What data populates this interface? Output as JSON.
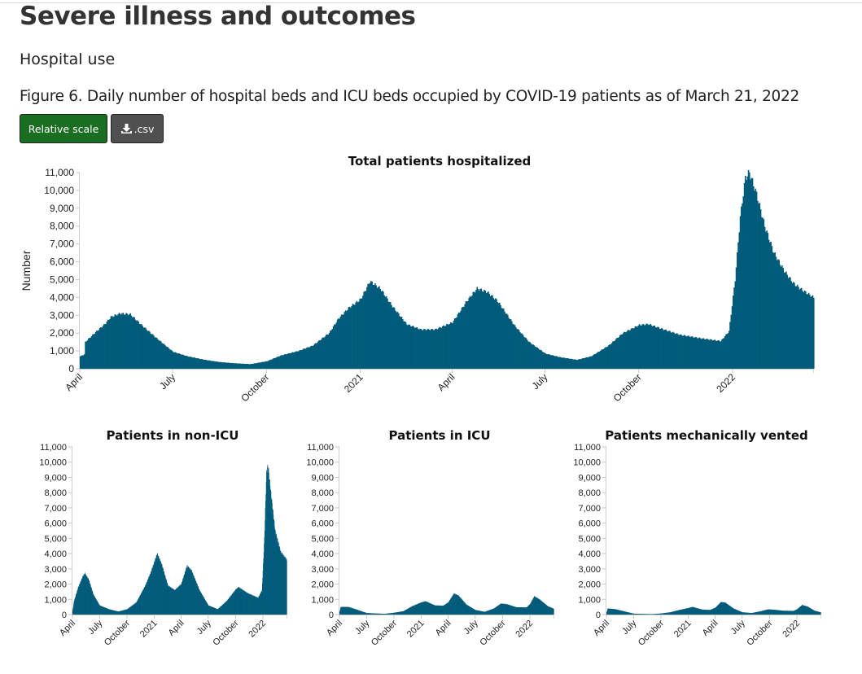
{
  "page": {
    "heading": "Severe illness and outcomes",
    "subheading": "Hospital use",
    "figure_caption": "Figure 6. Daily number of hospital beds and ICU beds occupied by COVID-19 patients as of March 21, 2022"
  },
  "toolbar": {
    "relative_scale_label": "Relative scale",
    "csv_label": ".csv",
    "csv_icon": "download-icon"
  },
  "colors": {
    "bar": "#005a7a",
    "relative_button": "#1a6e22",
    "csv_button": "#505050"
  },
  "chart_data": [
    {
      "id": "total",
      "type": "bar",
      "title": "Total patients hospitalized",
      "xlabel": "",
      "ylabel": "Number",
      "ylim": [
        0,
        11000
      ],
      "yticks": [
        "0",
        "1,000",
        "2,000",
        "3,000",
        "4,000",
        "5,000",
        "6,000",
        "7,000",
        "8,000",
        "9,000",
        "10,000",
        "11,000"
      ],
      "xlim": [
        "2020-04-01",
        "2022-03-21"
      ],
      "xticks": [
        {
          "date": "2020-04-01",
          "label": "April"
        },
        {
          "date": "2020-07-01",
          "label": "July"
        },
        {
          "date": "2020-10-01",
          "label": "October"
        },
        {
          "date": "2021-01-01",
          "label": "2021"
        },
        {
          "date": "2021-04-01",
          "label": "April"
        },
        {
          "date": "2021-07-01",
          "label": "July"
        },
        {
          "date": "2021-10-01",
          "label": "October"
        },
        {
          "date": "2022-01-01",
          "label": "2022"
        }
      ],
      "grid": false,
      "points": [
        [
          "2020-04-01",
          700
        ],
        [
          "2020-04-05",
          800
        ],
        [
          "2020-04-06",
          1500
        ],
        [
          "2020-04-15",
          2000
        ],
        [
          "2020-04-25",
          2500
        ],
        [
          "2020-05-01",
          2900
        ],
        [
          "2020-05-10",
          3100
        ],
        [
          "2020-05-20",
          3050
        ],
        [
          "2020-06-01",
          2400
        ],
        [
          "2020-06-15",
          1700
        ],
        [
          "2020-07-01",
          950
        ],
        [
          "2020-07-15",
          700
        ],
        [
          "2020-08-01",
          500
        ],
        [
          "2020-08-15",
          380
        ],
        [
          "2020-09-01",
          300
        ],
        [
          "2020-09-15",
          260
        ],
        [
          "2020-10-01",
          420
        ],
        [
          "2020-10-15",
          750
        ],
        [
          "2020-11-01",
          1000
        ],
        [
          "2020-11-15",
          1300
        ],
        [
          "2020-12-01",
          2000
        ],
        [
          "2020-12-10",
          2800
        ],
        [
          "2020-12-20",
          3400
        ],
        [
          "2021-01-01",
          3900
        ],
        [
          "2021-01-10",
          4900
        ],
        [
          "2021-01-20",
          4500
        ],
        [
          "2021-02-01",
          3500
        ],
        [
          "2021-02-15",
          2500
        ],
        [
          "2021-03-01",
          2200
        ],
        [
          "2021-03-15",
          2200
        ],
        [
          "2021-04-01",
          2600
        ],
        [
          "2021-04-15",
          3800
        ],
        [
          "2021-04-25",
          4500
        ],
        [
          "2021-05-05",
          4300
        ],
        [
          "2021-05-15",
          3800
        ],
        [
          "2021-06-01",
          2400
        ],
        [
          "2021-06-15",
          1500
        ],
        [
          "2021-07-01",
          850
        ],
        [
          "2021-07-15",
          650
        ],
        [
          "2021-08-01",
          500
        ],
        [
          "2021-08-15",
          700
        ],
        [
          "2021-09-01",
          1300
        ],
        [
          "2021-09-15",
          2000
        ],
        [
          "2021-10-01",
          2450
        ],
        [
          "2021-10-10",
          2500
        ],
        [
          "2021-10-25",
          2200
        ],
        [
          "2021-11-10",
          1900
        ],
        [
          "2021-12-01",
          1700
        ],
        [
          "2021-12-20",
          1550
        ],
        [
          "2021-12-28",
          2100
        ],
        [
          "2022-01-03",
          5000
        ],
        [
          "2022-01-08",
          8500
        ],
        [
          "2022-01-13",
          10700
        ],
        [
          "2022-01-17",
          11000
        ],
        [
          "2022-01-24",
          9800
        ],
        [
          "2022-02-01",
          8000
        ],
        [
          "2022-02-10",
          6500
        ],
        [
          "2022-02-20",
          5500
        ],
        [
          "2022-03-01",
          4800
        ],
        [
          "2022-03-10",
          4400
        ],
        [
          "2022-03-21",
          4000
        ]
      ]
    },
    {
      "id": "non-icu",
      "type": "bar",
      "title": "Patients in non-ICU",
      "ylim": [
        0,
        11000
      ],
      "yticks": [
        "0",
        "1,000",
        "2,000",
        "3,000",
        "4,000",
        "5,000",
        "6,000",
        "7,000",
        "8,000",
        "9,000",
        "10,000",
        "11,000"
      ],
      "xlim": [
        "2020-04-01",
        "2022-03-21"
      ],
      "xticks": [
        {
          "date": "2020-04-01",
          "label": "April"
        },
        {
          "date": "2020-07-01",
          "label": "July"
        },
        {
          "date": "2020-10-01",
          "label": "October"
        },
        {
          "date": "2021-01-01",
          "label": "2021"
        },
        {
          "date": "2021-04-01",
          "label": "April"
        },
        {
          "date": "2021-07-01",
          "label": "July"
        },
        {
          "date": "2021-10-01",
          "label": "October"
        },
        {
          "date": "2022-01-01",
          "label": "2022"
        }
      ],
      "points": [
        [
          "2020-04-01",
          300
        ],
        [
          "2020-04-06",
          900
        ],
        [
          "2020-04-20",
          1800
        ],
        [
          "2020-05-05",
          2500
        ],
        [
          "2020-05-12",
          2700
        ],
        [
          "2020-05-25",
          2300
        ],
        [
          "2020-06-10",
          1300
        ],
        [
          "2020-07-01",
          600
        ],
        [
          "2020-08-01",
          350
        ],
        [
          "2020-09-01",
          200
        ],
        [
          "2020-10-01",
          350
        ],
        [
          "2020-11-01",
          800
        ],
        [
          "2020-12-01",
          1900
        ],
        [
          "2020-12-20",
          2800
        ],
        [
          "2021-01-10",
          4000
        ],
        [
          "2021-01-25",
          3300
        ],
        [
          "2021-02-15",
          1900
        ],
        [
          "2021-03-10",
          1600
        ],
        [
          "2021-04-01",
          2000
        ],
        [
          "2021-04-20",
          3200
        ],
        [
          "2021-05-05",
          2900
        ],
        [
          "2021-06-01",
          1600
        ],
        [
          "2021-07-01",
          600
        ],
        [
          "2021-08-01",
          350
        ],
        [
          "2021-09-01",
          900
        ],
        [
          "2021-10-01",
          1650
        ],
        [
          "2021-10-10",
          1800
        ],
        [
          "2021-11-10",
          1400
        ],
        [
          "2021-12-15",
          1100
        ],
        [
          "2021-12-28",
          1600
        ],
        [
          "2022-01-05",
          5000
        ],
        [
          "2022-01-12",
          9300
        ],
        [
          "2022-01-17",
          9800
        ],
        [
          "2022-01-25",
          8300
        ],
        [
          "2022-02-10",
          5500
        ],
        [
          "2022-03-01",
          4100
        ],
        [
          "2022-03-21",
          3600
        ]
      ]
    },
    {
      "id": "icu",
      "type": "bar",
      "title": "Patients in ICU",
      "ylim": [
        0,
        11000
      ],
      "yticks": [
        "0",
        "1,000",
        "2,000",
        "3,000",
        "4,000",
        "5,000",
        "6,000",
        "7,000",
        "8,000",
        "9,000",
        "10,000",
        "11,000"
      ],
      "xlim": [
        "2020-04-01",
        "2022-03-21"
      ],
      "xticks": [
        {
          "date": "2020-04-01",
          "label": "April"
        },
        {
          "date": "2020-07-01",
          "label": "July"
        },
        {
          "date": "2020-10-01",
          "label": "October"
        },
        {
          "date": "2021-01-01",
          "label": "2021"
        },
        {
          "date": "2021-04-01",
          "label": "April"
        },
        {
          "date": "2021-07-01",
          "label": "July"
        },
        {
          "date": "2021-10-01",
          "label": "October"
        },
        {
          "date": "2022-01-01",
          "label": "2022"
        }
      ],
      "points": [
        [
          "2020-04-01",
          200
        ],
        [
          "2020-04-05",
          500
        ],
        [
          "2020-05-01",
          500
        ],
        [
          "2020-06-01",
          300
        ],
        [
          "2020-07-01",
          100
        ],
        [
          "2020-08-01",
          70
        ],
        [
          "2020-09-01",
          50
        ],
        [
          "2020-10-01",
          120
        ],
        [
          "2020-11-01",
          220
        ],
        [
          "2020-12-01",
          550
        ],
        [
          "2021-01-01",
          800
        ],
        [
          "2021-01-15",
          870
        ],
        [
          "2021-02-15",
          600
        ],
        [
          "2021-03-15",
          580
        ],
        [
          "2021-04-01",
          800
        ],
        [
          "2021-04-20",
          1380
        ],
        [
          "2021-05-05",
          1250
        ],
        [
          "2021-06-01",
          650
        ],
        [
          "2021-07-01",
          300
        ],
        [
          "2021-08-01",
          180
        ],
        [
          "2021-09-01",
          400
        ],
        [
          "2021-09-25",
          720
        ],
        [
          "2021-10-15",
          680
        ],
        [
          "2021-11-15",
          480
        ],
        [
          "2021-12-20",
          470
        ],
        [
          "2022-01-01",
          700
        ],
        [
          "2022-01-15",
          1200
        ],
        [
          "2022-02-01",
          1000
        ],
        [
          "2022-03-01",
          550
        ],
        [
          "2022-03-21",
          380
        ]
      ]
    },
    {
      "id": "vented",
      "type": "bar",
      "title": "Patients mechanically vented",
      "ylim": [
        0,
        11000
      ],
      "yticks": [
        "0",
        "1,000",
        "2,000",
        "3,000",
        "4,000",
        "5,000",
        "6,000",
        "7,000",
        "8,000",
        "9,000",
        "10,000",
        "11,000"
      ],
      "xlim": [
        "2020-04-01",
        "2022-03-21"
      ],
      "xticks": [
        {
          "date": "2020-04-01",
          "label": "April"
        },
        {
          "date": "2020-07-01",
          "label": "July"
        },
        {
          "date": "2020-10-01",
          "label": "October"
        },
        {
          "date": "2021-01-01",
          "label": "2021"
        },
        {
          "date": "2021-04-01",
          "label": "April"
        },
        {
          "date": "2021-07-01",
          "label": "July"
        },
        {
          "date": "2021-10-01",
          "label": "October"
        },
        {
          "date": "2022-01-01",
          "label": "2022"
        }
      ],
      "points": [
        [
          "2020-04-01",
          150
        ],
        [
          "2020-04-05",
          400
        ],
        [
          "2020-05-01",
          350
        ],
        [
          "2020-06-01",
          200
        ],
        [
          "2020-07-01",
          60
        ],
        [
          "2020-08-01",
          40
        ],
        [
          "2020-09-01",
          30
        ],
        [
          "2020-10-01",
          70
        ],
        [
          "2020-11-01",
          150
        ],
        [
          "2020-12-01",
          300
        ],
        [
          "2021-01-01",
          430
        ],
        [
          "2021-01-15",
          500
        ],
        [
          "2021-02-15",
          330
        ],
        [
          "2021-03-15",
          300
        ],
        [
          "2021-04-01",
          450
        ],
        [
          "2021-04-20",
          820
        ],
        [
          "2021-05-05",
          780
        ],
        [
          "2021-06-01",
          400
        ],
        [
          "2021-07-01",
          150
        ],
        [
          "2021-08-01",
          100
        ],
        [
          "2021-09-01",
          220
        ],
        [
          "2021-09-25",
          340
        ],
        [
          "2021-10-15",
          320
        ],
        [
          "2021-11-15",
          250
        ],
        [
          "2021-12-20",
          240
        ],
        [
          "2022-01-01",
          350
        ],
        [
          "2022-01-18",
          630
        ],
        [
          "2022-02-05",
          520
        ],
        [
          "2022-03-01",
          250
        ],
        [
          "2022-03-21",
          150
        ]
      ]
    }
  ]
}
